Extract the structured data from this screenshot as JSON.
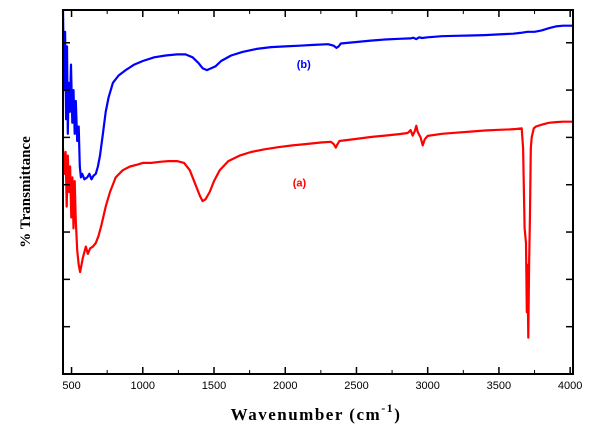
{
  "chart_data": {
    "type": "line",
    "title": "",
    "xlabel": "Wavenumber (cm",
    "xlabel_sup": "-1",
    "xlabel_close": ")",
    "ylabel": "% Transmittance",
    "xlim": [
      440,
      4020
    ],
    "ylim": [
      0,
      100
    ],
    "x_ticks": [
      500,
      1000,
      1500,
      2000,
      2500,
      3000,
      3500,
      4000
    ],
    "x_minor_step": 250,
    "y_tick_values": [
      13,
      26,
      39,
      52,
      65,
      78,
      91
    ],
    "y_tick_labels": false,
    "grid": false,
    "legend": "none",
    "annotations": [
      {
        "text": "(b)",
        "x": 2130,
        "y": 84
      },
      {
        "text": "(a)",
        "x": 2100,
        "y": 51.5
      }
    ],
    "series": [
      {
        "color": "#0000ff",
        "points": [
          [
            440,
            100
          ],
          [
            448,
            78
          ],
          [
            455,
            94
          ],
          [
            462,
            70
          ],
          [
            468,
            90
          ],
          [
            474,
            66
          ],
          [
            480,
            80
          ],
          [
            488,
            72
          ],
          [
            496,
            85
          ],
          [
            505,
            69
          ],
          [
            514,
            78
          ],
          [
            522,
            66
          ],
          [
            530,
            75
          ],
          [
            540,
            64
          ],
          [
            550,
            68
          ],
          [
            558,
            57
          ],
          [
            566,
            54
          ],
          [
            575,
            55
          ],
          [
            590,
            53.5
          ],
          [
            610,
            54
          ],
          [
            625,
            55
          ],
          [
            640,
            53.5
          ],
          [
            655,
            54.5
          ],
          [
            670,
            55
          ],
          [
            685,
            57
          ],
          [
            700,
            60
          ],
          [
            720,
            66
          ],
          [
            740,
            72
          ],
          [
            760,
            76
          ],
          [
            790,
            80
          ],
          [
            830,
            82
          ],
          [
            880,
            83.5
          ],
          [
            940,
            85
          ],
          [
            1000,
            86
          ],
          [
            1080,
            87
          ],
          [
            1160,
            87.5
          ],
          [
            1240,
            87.8
          ],
          [
            1300,
            87.8
          ],
          [
            1350,
            87
          ],
          [
            1390,
            85.5
          ],
          [
            1420,
            84
          ],
          [
            1450,
            83.5
          ],
          [
            1480,
            84
          ],
          [
            1510,
            84.5
          ],
          [
            1550,
            86
          ],
          [
            1620,
            87.5
          ],
          [
            1700,
            88.5
          ],
          [
            1800,
            89.3
          ],
          [
            1900,
            89.8
          ],
          [
            2000,
            90
          ],
          [
            2100,
            90.2
          ],
          [
            2200,
            90.4
          ],
          [
            2300,
            90.6
          ],
          [
            2340,
            90.2
          ],
          [
            2360,
            89.6
          ],
          [
            2375,
            90
          ],
          [
            2390,
            90.8
          ],
          [
            2500,
            91.2
          ],
          [
            2600,
            91.6
          ],
          [
            2700,
            91.9
          ],
          [
            2800,
            92.1
          ],
          [
            2880,
            92.2
          ],
          [
            2900,
            92.4
          ],
          [
            2920,
            92
          ],
          [
            2940,
            92.5
          ],
          [
            2960,
            92.3
          ],
          [
            3000,
            92.5
          ],
          [
            3100,
            92.8
          ],
          [
            3200,
            92.9
          ],
          [
            3300,
            93
          ],
          [
            3400,
            93.1
          ],
          [
            3500,
            93.3
          ],
          [
            3600,
            93.5
          ],
          [
            3650,
            93.7
          ],
          [
            3700,
            94
          ],
          [
            3750,
            94
          ],
          [
            3800,
            94.4
          ],
          [
            3850,
            95
          ],
          [
            3900,
            95.5
          ],
          [
            3950,
            95.7
          ],
          [
            4020,
            95.7
          ]
        ]
      },
      {
        "color": "#ff0000",
        "points": [
          [
            440,
            62
          ],
          [
            450,
            55
          ],
          [
            458,
            61
          ],
          [
            466,
            46
          ],
          [
            474,
            60
          ],
          [
            482,
            50
          ],
          [
            490,
            57
          ],
          [
            498,
            43
          ],
          [
            506,
            54
          ],
          [
            514,
            40
          ],
          [
            522,
            53
          ],
          [
            530,
            42
          ],
          [
            540,
            34
          ],
          [
            550,
            30
          ],
          [
            560,
            28
          ],
          [
            570,
            30
          ],
          [
            580,
            32
          ],
          [
            590,
            33.5
          ],
          [
            600,
            35
          ],
          [
            615,
            33
          ],
          [
            630,
            34.5
          ],
          [
            650,
            35
          ],
          [
            670,
            36
          ],
          [
            690,
            38
          ],
          [
            710,
            41
          ],
          [
            740,
            46
          ],
          [
            770,
            50
          ],
          [
            810,
            54
          ],
          [
            860,
            56
          ],
          [
            910,
            57
          ],
          [
            960,
            57.5
          ],
          [
            1000,
            58
          ],
          [
            1060,
            58
          ],
          [
            1120,
            58.3
          ],
          [
            1180,
            58.5
          ],
          [
            1240,
            58.5
          ],
          [
            1290,
            58
          ],
          [
            1330,
            56
          ],
          [
            1370,
            52
          ],
          [
            1400,
            49
          ],
          [
            1420,
            47.5
          ],
          [
            1440,
            48
          ],
          [
            1470,
            50
          ],
          [
            1500,
            53
          ],
          [
            1540,
            56
          ],
          [
            1600,
            58.5
          ],
          [
            1680,
            60
          ],
          [
            1760,
            61
          ],
          [
            1850,
            61.7
          ],
          [
            1950,
            62.3
          ],
          [
            2050,
            62.8
          ],
          [
            2150,
            63.2
          ],
          [
            2250,
            63.6
          ],
          [
            2320,
            63.8
          ],
          [
            2340,
            63.2
          ],
          [
            2355,
            62.2
          ],
          [
            2365,
            63
          ],
          [
            2380,
            64
          ],
          [
            2500,
            64.6
          ],
          [
            2600,
            65.1
          ],
          [
            2700,
            65.5
          ],
          [
            2800,
            65.9
          ],
          [
            2860,
            66.2
          ],
          [
            2880,
            67
          ],
          [
            2895,
            65.5
          ],
          [
            2910,
            66.8
          ],
          [
            2920,
            68.2
          ],
          [
            2930,
            66.5
          ],
          [
            2950,
            65
          ],
          [
            2965,
            62.8
          ],
          [
            2980,
            64.5
          ],
          [
            3000,
            65.4
          ],
          [
            3100,
            66
          ],
          [
            3200,
            66.3
          ],
          [
            3300,
            66.6
          ],
          [
            3400,
            66.9
          ],
          [
            3500,
            67.1
          ],
          [
            3580,
            67.2
          ],
          [
            3620,
            67.3
          ],
          [
            3660,
            67.5
          ],
          [
            3670,
            62
          ],
          [
            3680,
            40
          ],
          [
            3690,
            36
          ],
          [
            3696,
            17
          ],
          [
            3700,
            30
          ],
          [
            3706,
            10
          ],
          [
            3712,
            30
          ],
          [
            3718,
            44
          ],
          [
            3724,
            62
          ],
          [
            3730,
            65
          ],
          [
            3745,
            67.5
          ],
          [
            3760,
            68
          ],
          [
            3800,
            68.5
          ],
          [
            3850,
            69
          ],
          [
            3900,
            69.2
          ],
          [
            3950,
            69.3
          ],
          [
            4020,
            69.3
          ]
        ]
      }
    ]
  }
}
